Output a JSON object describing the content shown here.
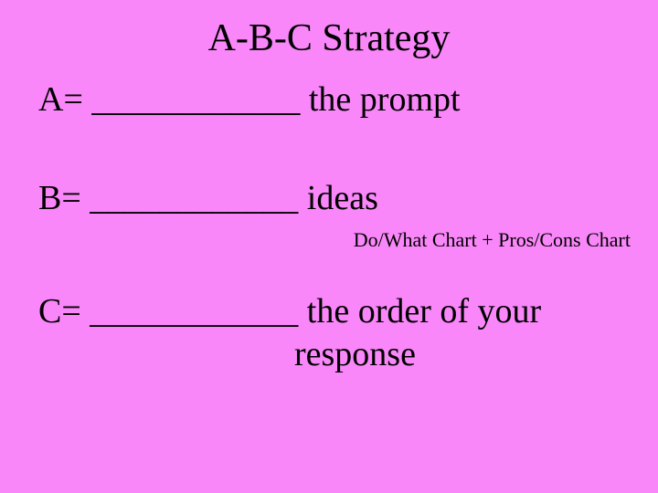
{
  "background_color": "#f987f9",
  "text_color": "#000000",
  "font_family": "Times New Roman",
  "title": {
    "text": "A-B-C Strategy",
    "fontsize": 42
  },
  "body_fontsize": 38,
  "note_fontsize": 22,
  "lineA": {
    "prefix": "A=",
    "blank": "____________",
    "suffix": "the prompt"
  },
  "lineB": {
    "prefix": "B=",
    "blank": "____________",
    "suffix": "ideas",
    "note": "Do/What Chart + Pros/Cons Chart"
  },
  "lineC": {
    "prefix": "C=",
    "blank": "____________",
    "suffix1": "the order of your",
    "suffix2": "response"
  }
}
